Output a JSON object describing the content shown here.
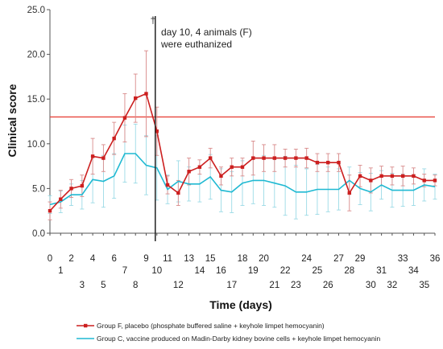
{
  "chart_data": {
    "type": "line",
    "xlabel": "Time (days)",
    "ylabel": "Clinical score",
    "xlim": [
      0,
      36
    ],
    "ylim": [
      0,
      25
    ],
    "y_ticks": [
      "0.0",
      "5.0",
      "10.0",
      "15.0",
      "20.0",
      "25.0"
    ],
    "x_ticks_upper": [
      "0",
      "2",
      "4",
      "6",
      "9",
      "11",
      "13",
      "15",
      "18",
      "20",
      "24",
      "27",
      "29",
      "33",
      "36"
    ],
    "x_ticks_middle": [
      "1",
      "7",
      "10",
      "14",
      "16",
      "19",
      "22",
      "25",
      "28",
      "31",
      "34"
    ],
    "x_ticks_lower": [
      "3",
      "5",
      "8",
      "12",
      "17",
      "21",
      "23",
      "26",
      "30",
      "32",
      "35"
    ],
    "grid": false,
    "reference_line": {
      "y": 13,
      "color": "#e8453c"
    },
    "annotation": {
      "dagger": "†",
      "x": 10,
      "lines": [
        "day 10, 4 animals (F)",
        "were euthanized"
      ]
    },
    "series": [
      {
        "name": "Group F, placebo (phosphate buffered saline + keyhole limpet hemocyanin)",
        "color": "#cc1f1f",
        "marker": "square",
        "x": [
          0,
          1,
          2,
          3,
          4,
          5,
          6,
          7,
          8,
          9,
          10,
          11,
          12,
          13,
          14,
          15,
          16,
          17,
          18,
          19,
          20,
          21,
          22,
          23,
          24,
          25,
          26,
          27,
          28,
          29,
          30,
          31,
          32,
          33,
          34,
          35,
          36
        ],
        "y": [
          2.5,
          3.8,
          5.0,
          5.3,
          8.6,
          8.4,
          10.6,
          12.9,
          15.1,
          15.6,
          11.4,
          5.4,
          4.5,
          6.9,
          7.4,
          8.4,
          6.4,
          7.4,
          7.4,
          8.4,
          8.4,
          8.4,
          8.4,
          8.4,
          8.4,
          7.9,
          7.9,
          7.9,
          4.5,
          6.4,
          5.9,
          6.4,
          6.4,
          6.4,
          6.4,
          5.9,
          5.9
        ],
        "err": [
          1.0,
          1.0,
          1.0,
          1.2,
          2.0,
          1.5,
          1.8,
          2.7,
          2.7,
          4.8,
          2.7,
          1.0,
          1.4,
          1.5,
          0.8,
          1.1,
          1.0,
          1.0,
          1.0,
          1.9,
          1.5,
          1.5,
          1.0,
          1.0,
          1.1,
          1.0,
          1.0,
          1.0,
          2.0,
          1.2,
          1.4,
          1.1,
          1.0,
          1.1,
          0.9,
          0.7,
          0.6
        ]
      },
      {
        "name": "Group C, vaccine produced on Madin-Darby kidney bovine cells + keyhole limpet hemocyanin",
        "color": "#1fb9d2",
        "marker": "none",
        "x": [
          0,
          1,
          2,
          3,
          4,
          5,
          6,
          7,
          8,
          9,
          10,
          11,
          12,
          13,
          14,
          15,
          16,
          17,
          18,
          19,
          20,
          21,
          22,
          23,
          24,
          25,
          26,
          27,
          28,
          29,
          30,
          31,
          32,
          33,
          34,
          35,
          36
        ],
        "y": [
          3.2,
          3.5,
          4.3,
          4.3,
          6.0,
          5.8,
          6.4,
          8.9,
          8.9,
          7.6,
          7.3,
          4.9,
          5.8,
          5.5,
          5.5,
          6.3,
          4.8,
          4.6,
          5.6,
          5.9,
          5.9,
          5.6,
          5.3,
          4.6,
          4.6,
          4.9,
          4.9,
          4.9,
          5.9,
          5.0,
          4.6,
          5.4,
          4.8,
          4.8,
          4.8,
          5.4,
          5.2
        ],
        "err": [
          1.0,
          1.2,
          1.2,
          1.6,
          2.6,
          2.9,
          2.5,
          3.2,
          3.3,
          3.3,
          3.6,
          1.6,
          2.3,
          1.9,
          2.0,
          2.5,
          2.4,
          2.3,
          2.5,
          2.6,
          2.8,
          2.7,
          3.3,
          3.0,
          2.6,
          2.8,
          2.5,
          2.3,
          1.5,
          1.8,
          2.1,
          1.6,
          1.9,
          1.8,
          1.7,
          1.8,
          1.4
        ]
      }
    ],
    "legend": {
      "position": "bottom",
      "items": [
        "Group F, placebo (phosphate buffered saline + keyhole limpet hemocyanin)",
        "Group C, vaccine produced on Madin-Darby kidney bovine cells + keyhole limpet hemocyanin"
      ]
    }
  }
}
